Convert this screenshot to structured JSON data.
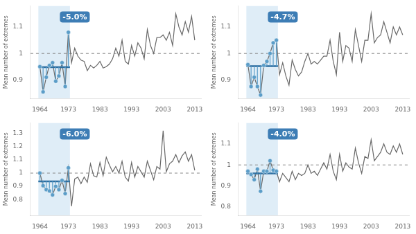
{
  "chart_data": [
    {
      "type": "line",
      "ylabel": "Mean number of extremes",
      "annotation": {
        "text": "-5.0%",
        "color": "#3d7db5"
      },
      "xlim": [
        1961,
        2015
      ],
      "xticks": [
        1964,
        1973,
        1983,
        1993,
        2003,
        2013
      ],
      "ylim": [
        0.83,
        1.18
      ],
      "yticks": [
        0.9,
        1,
        1.1
      ],
      "grid": false,
      "shade": {
        "x": [
          1963.5,
          1973.5
        ],
        "color": "#c5dff0"
      },
      "reference_line": {
        "value": 1,
        "color": "#888888",
        "line_style": "dashed"
      },
      "series": [
        {
          "type": "line",
          "color": "#686868",
          "x": [
            1964,
            1965,
            1966,
            1967,
            1968,
            1969,
            1970,
            1971,
            1972,
            1973,
            1974,
            1975,
            1976,
            1977,
            1978,
            1979,
            1980,
            1981,
            1982,
            1983,
            1984,
            1985,
            1986,
            1987,
            1988,
            1989,
            1990,
            1991,
            1992,
            1993,
            1994,
            1995,
            1996,
            1997,
            1998,
            1999,
            2000,
            2001,
            2002,
            2003,
            2004,
            2005,
            2006,
            2007,
            2008,
            2009,
            2010,
            2011,
            2012,
            2013
          ],
          "values": [
            0.95,
            0.855,
            0.91,
            0.955,
            0.965,
            0.895,
            0.915,
            0.965,
            0.875,
            1.08,
            0.965,
            1.02,
            0.99,
            0.975,
            0.97,
            0.935,
            0.955,
            0.945,
            0.955,
            0.97,
            0.945,
            0.95,
            0.96,
            0.98,
            1.02,
            0.99,
            1.05,
            0.97,
            0.96,
            1.03,
            0.99,
            1.04,
            1.02,
            0.98,
            1.09,
            1.03,
            1.0,
            1.06,
            1.06,
            1.07,
            1.05,
            1.08,
            1.03,
            1.15,
            1.1,
            1.07,
            1.12,
            1.08,
            1.14,
            1.05
          ]
        },
        {
          "type": "line",
          "color": "#2c6ea0",
          "x": [
            1963.5,
            1973.5
          ],
          "values": [
            0.948,
            0.948
          ]
        },
        {
          "type": "scatter",
          "color": "#5b9dc8",
          "baseline": 0.948,
          "x": [
            1964,
            1965,
            1966,
            1967,
            1968,
            1969,
            1970,
            1971,
            1972,
            1973
          ],
          "values": [
            0.95,
            0.855,
            0.91,
            0.955,
            0.965,
            0.895,
            0.915,
            0.965,
            0.875,
            1.08
          ]
        }
      ]
    },
    {
      "type": "line",
      "ylabel": "Mean number of extremes",
      "annotation": {
        "text": "-4.7%",
        "color": "#3d7db5"
      },
      "xlim": [
        1961,
        2015
      ],
      "xticks": [
        1964,
        1973,
        1983,
        1993,
        2003,
        2013
      ],
      "ylim": [
        0.83,
        1.18
      ],
      "yticks": [
        0.9,
        1,
        1.1
      ],
      "grid": false,
      "shade": {
        "x": [
          1963.5,
          1973.5
        ],
        "color": "#c5dff0"
      },
      "reference_line": {
        "value": 1,
        "color": "#888888",
        "line_style": "dashed"
      },
      "series": [
        {
          "type": "line",
          "color": "#686868",
          "x": [
            1964,
            1965,
            1966,
            1967,
            1968,
            1969,
            1970,
            1971,
            1972,
            1973,
            1974,
            1975,
            1976,
            1977,
            1978,
            1979,
            1980,
            1981,
            1982,
            1983,
            1984,
            1985,
            1986,
            1987,
            1988,
            1989,
            1990,
            1991,
            1992,
            1993,
            1994,
            1995,
            1996,
            1997,
            1998,
            1999,
            2000,
            2001,
            2002,
            2003,
            2004,
            2005,
            2006,
            2007,
            2008,
            2009,
            2010,
            2011,
            2012,
            2013
          ],
          "values": [
            0.958,
            0.875,
            0.91,
            0.875,
            0.843,
            0.955,
            0.97,
            1.0,
            1.04,
            1.05,
            0.92,
            0.965,
            0.915,
            0.88,
            0.975,
            0.94,
            0.915,
            0.93,
            0.97,
            1.0,
            0.96,
            0.97,
            0.96,
            0.975,
            0.99,
            0.99,
            1.05,
            0.97,
            0.92,
            1.08,
            0.97,
            1.03,
            1.02,
            0.97,
            1.09,
            1.03,
            0.97,
            1.05,
            1.05,
            1.15,
            1.04,
            1.06,
            1.07,
            1.12,
            1.08,
            1.04,
            1.1,
            1.07,
            1.1,
            1.07
          ]
        },
        {
          "type": "line",
          "color": "#2c6ea0",
          "x": [
            1963.5,
            1973.5
          ],
          "values": [
            0.952,
            0.952
          ]
        },
        {
          "type": "scatter",
          "color": "#5b9dc8",
          "baseline": 0.952,
          "x": [
            1964,
            1965,
            1966,
            1967,
            1968,
            1969,
            1970,
            1971,
            1972,
            1973
          ],
          "values": [
            0.958,
            0.875,
            0.91,
            0.875,
            0.843,
            0.955,
            0.97,
            1.0,
            1.04,
            1.05
          ]
        }
      ]
    },
    {
      "type": "line",
      "ylabel": "Mean number of extremes",
      "annotation": {
        "text": "-6.0%",
        "color": "#3d7db5"
      },
      "xlim": [
        1961,
        2015
      ],
      "xticks": [
        1964,
        1973,
        1983,
        1993,
        2003,
        2013
      ],
      "ylim": [
        0.68,
        1.38
      ],
      "yticks": [
        0.8,
        0.9,
        1,
        1.1,
        1.2,
        1.3
      ],
      "grid": false,
      "shade": {
        "x": [
          1963.5,
          1973.5
        ],
        "color": "#c5dff0"
      },
      "reference_line": {
        "value": 1,
        "color": "#888888",
        "line_style": "dashed"
      },
      "series": [
        {
          "type": "line",
          "color": "#686868",
          "x": [
            1964,
            1965,
            1966,
            1967,
            1968,
            1969,
            1970,
            1971,
            1972,
            1973,
            1974,
            1975,
            1976,
            1977,
            1978,
            1979,
            1980,
            1981,
            1982,
            1983,
            1984,
            1985,
            1986,
            1987,
            1988,
            1989,
            1990,
            1991,
            1992,
            1993,
            1994,
            1995,
            1996,
            1997,
            1998,
            1999,
            2000,
            2001,
            2002,
            2003,
            2004,
            2005,
            2006,
            2007,
            2008,
            2009,
            2010,
            2011,
            2012,
            2013
          ],
          "values": [
            1.0,
            0.905,
            0.875,
            0.865,
            0.835,
            0.9,
            0.875,
            0.945,
            0.845,
            1.04,
            0.75,
            0.955,
            0.97,
            0.92,
            0.97,
            0.93,
            1.07,
            0.98,
            0.97,
            1.08,
            0.98,
            1.12,
            1.06,
            1.01,
            1.05,
            1.0,
            1.09,
            0.97,
            0.94,
            1.08,
            0.97,
            1.05,
            1.01,
            0.97,
            1.09,
            1.02,
            0.95,
            1.05,
            1.03,
            1.32,
            1.01,
            1.07,
            1.09,
            1.14,
            1.08,
            1.13,
            1.16,
            1.09,
            1.14,
            1.02
          ]
        },
        {
          "type": "line",
          "color": "#2c6ea0",
          "x": [
            1963.5,
            1973.5
          ],
          "values": [
            0.938,
            0.938
          ]
        },
        {
          "type": "scatter",
          "color": "#5b9dc8",
          "baseline": 0.938,
          "x": [
            1964,
            1965,
            1966,
            1967,
            1968,
            1969,
            1970,
            1971,
            1972,
            1973
          ],
          "values": [
            1.0,
            0.905,
            0.875,
            0.865,
            0.835,
            0.9,
            0.875,
            0.945,
            0.845,
            1.04
          ]
        }
      ]
    },
    {
      "type": "line",
      "ylabel": "Mean number of extremes",
      "annotation": {
        "text": "-4.0%",
        "color": "#3d7db5"
      },
      "xlim": [
        1961,
        2015
      ],
      "xticks": [
        1964,
        1973,
        1983,
        1993,
        2003,
        2013
      ],
      "ylim": [
        0.76,
        1.2
      ],
      "yticks": [
        0.8,
        0.9,
        1,
        1.1
      ],
      "grid": false,
      "shade": {
        "x": [
          1963.5,
          1973.5
        ],
        "color": "#c5dff0"
      },
      "reference_line": {
        "value": 1,
        "color": "#888888",
        "line_style": "dashed"
      },
      "series": [
        {
          "type": "line",
          "color": "#686868",
          "x": [
            1964,
            1965,
            1966,
            1967,
            1968,
            1969,
            1970,
            1971,
            1972,
            1973,
            1974,
            1975,
            1976,
            1977,
            1978,
            1979,
            1980,
            1981,
            1982,
            1983,
            1984,
            1985,
            1986,
            1987,
            1988,
            1989,
            1990,
            1991,
            1992,
            1993,
            1994,
            1995,
            1996,
            1997,
            1998,
            1999,
            2000,
            2001,
            2002,
            2003,
            2004,
            2005,
            2006,
            2007,
            2008,
            2009,
            2010,
            2011,
            2012,
            2013
          ],
          "values": [
            0.97,
            0.955,
            0.93,
            0.98,
            0.875,
            0.97,
            0.97,
            1.02,
            0.975,
            0.97,
            0.92,
            0.96,
            0.94,
            0.92,
            0.97,
            0.93,
            0.96,
            0.95,
            0.96,
            1.0,
            0.96,
            0.97,
            0.95,
            0.98,
            1.01,
            0.98,
            1.05,
            0.97,
            0.93,
            1.05,
            0.97,
            1.01,
            0.99,
            0.98,
            1.08,
            1.01,
            0.96,
            1.04,
            1.03,
            1.12,
            1.02,
            1.04,
            1.06,
            1.1,
            1.06,
            1.05,
            1.09,
            1.06,
            1.1,
            1.05
          ]
        },
        {
          "type": "line",
          "color": "#2c6ea0",
          "x": [
            1963.5,
            1973.5
          ],
          "values": [
            0.96,
            0.96
          ]
        },
        {
          "type": "scatter",
          "color": "#5b9dc8",
          "baseline": 0.96,
          "x": [
            1964,
            1965,
            1966,
            1967,
            1968,
            1969,
            1970,
            1971,
            1972,
            1973
          ],
          "values": [
            0.97,
            0.955,
            0.93,
            0.98,
            0.875,
            0.97,
            0.97,
            1.02,
            0.975,
            0.97
          ]
        }
      ]
    }
  ]
}
